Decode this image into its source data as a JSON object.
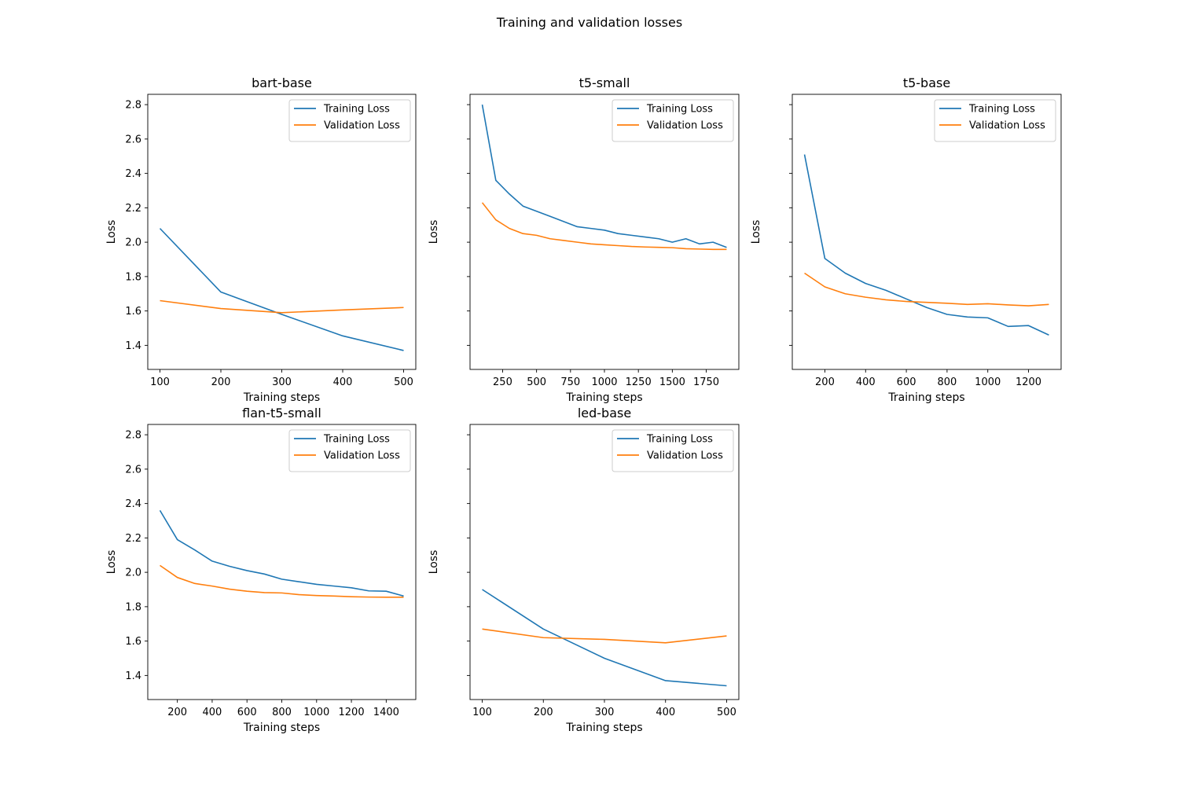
{
  "figure_title": "Training and validation losses",
  "colors": {
    "training": "#1f77b4",
    "validation": "#ff7f0e"
  },
  "chart_data": [
    {
      "type": "line",
      "title": "bart-base",
      "xlabel": "Training steps",
      "ylabel": "Loss",
      "xlim": [
        80,
        520
      ],
      "ylim": [
        1.26,
        2.86
      ],
      "xticks": [
        100,
        200,
        300,
        400,
        500
      ],
      "yticks": [
        1.4,
        1.6,
        1.8,
        2.0,
        2.2,
        2.4,
        2.6,
        2.8
      ],
      "show_ytick_labels": true,
      "legend": "top-right",
      "x": [
        100,
        200,
        300,
        400,
        500
      ],
      "series": [
        {
          "name": "Training Loss",
          "color": "#1f77b4",
          "values": [
            2.08,
            1.71,
            1.58,
            1.455,
            1.37
          ]
        },
        {
          "name": "Validation Loss",
          "color": "#ff7f0e",
          "values": [
            1.66,
            1.614,
            1.59,
            1.606,
            1.62
          ]
        }
      ]
    },
    {
      "type": "line",
      "title": "t5-small",
      "xlabel": "Training steps",
      "ylabel": "Loss",
      "xlim": [
        10,
        1990
      ],
      "ylim": [
        1.26,
        2.86
      ],
      "xticks": [
        250,
        500,
        750,
        1000,
        1250,
        1500,
        1750
      ],
      "yticks": [
        1.4,
        1.6,
        1.8,
        2.0,
        2.2,
        2.4,
        2.6,
        2.8
      ],
      "show_ytick_labels": false,
      "legend": "top-right",
      "x": [
        100,
        200,
        300,
        400,
        500,
        600,
        700,
        800,
        900,
        1000,
        1100,
        1200,
        1300,
        1400,
        1500,
        1600,
        1700,
        1800,
        1900
      ],
      "series": [
        {
          "name": "Training Loss",
          "color": "#1f77b4",
          "values": [
            2.8,
            2.36,
            2.28,
            2.21,
            2.18,
            2.15,
            2.12,
            2.09,
            2.08,
            2.07,
            2.05,
            2.04,
            2.03,
            2.02,
            2.0,
            2.02,
            1.99,
            2.0,
            1.97
          ]
        },
        {
          "name": "Validation Loss",
          "color": "#ff7f0e",
          "values": [
            2.23,
            2.13,
            2.08,
            2.05,
            2.04,
            2.02,
            2.01,
            2.0,
            1.99,
            1.985,
            1.98,
            1.975,
            1.972,
            1.97,
            1.968,
            1.962,
            1.96,
            1.958,
            1.958
          ]
        }
      ]
    },
    {
      "type": "line",
      "title": "t5-base",
      "xlabel": "Training steps",
      "ylabel": "Loss",
      "xlim": [
        40,
        1360
      ],
      "ylim": [
        1.26,
        2.86
      ],
      "xticks": [
        200,
        400,
        600,
        800,
        1000,
        1200
      ],
      "yticks": [
        1.4,
        1.6,
        1.8,
        2.0,
        2.2,
        2.4,
        2.6,
        2.8
      ],
      "show_ytick_labels": false,
      "legend": "top-right",
      "x": [
        100,
        200,
        300,
        400,
        500,
        600,
        700,
        800,
        900,
        1000,
        1100,
        1200,
        1300
      ],
      "series": [
        {
          "name": "Training Loss",
          "color": "#1f77b4",
          "values": [
            2.51,
            1.905,
            1.82,
            1.76,
            1.72,
            1.67,
            1.62,
            1.58,
            1.565,
            1.56,
            1.51,
            1.515,
            1.46
          ]
        },
        {
          "name": "Validation Loss",
          "color": "#ff7f0e",
          "values": [
            1.82,
            1.74,
            1.7,
            1.68,
            1.665,
            1.655,
            1.65,
            1.645,
            1.638,
            1.642,
            1.635,
            1.63,
            1.638
          ]
        }
      ]
    },
    {
      "type": "line",
      "title": "flan-t5-small",
      "xlabel": "Training steps",
      "ylabel": "Loss",
      "xlim": [
        30,
        1570
      ],
      "ylim": [
        1.26,
        2.86
      ],
      "xticks": [
        200,
        400,
        600,
        800,
        1000,
        1200,
        1400
      ],
      "yticks": [
        1.4,
        1.6,
        1.8,
        2.0,
        2.2,
        2.4,
        2.6,
        2.8
      ],
      "show_ytick_labels": true,
      "legend": "top-right",
      "x": [
        100,
        200,
        300,
        400,
        500,
        600,
        700,
        800,
        900,
        1000,
        1100,
        1200,
        1300,
        1400,
        1500
      ],
      "series": [
        {
          "name": "Training Loss",
          "color": "#1f77b4",
          "values": [
            2.36,
            2.19,
            2.13,
            2.065,
            2.035,
            2.01,
            1.99,
            1.96,
            1.945,
            1.93,
            1.92,
            1.91,
            1.892,
            1.89,
            1.862
          ]
        },
        {
          "name": "Validation Loss",
          "color": "#ff7f0e",
          "values": [
            2.04,
            1.97,
            1.935,
            1.92,
            1.902,
            1.89,
            1.882,
            1.88,
            1.87,
            1.865,
            1.862,
            1.858,
            1.856,
            1.855,
            1.855
          ]
        }
      ]
    },
    {
      "type": "line",
      "title": "led-base",
      "xlabel": "Training steps",
      "ylabel": "Loss",
      "xlim": [
        80,
        520
      ],
      "ylim": [
        1.26,
        2.86
      ],
      "xticks": [
        100,
        200,
        300,
        400,
        500
      ],
      "yticks": [
        1.4,
        1.6,
        1.8,
        2.0,
        2.2,
        2.4,
        2.6,
        2.8
      ],
      "show_ytick_labels": false,
      "legend": "top-right",
      "x": [
        100,
        200,
        300,
        400,
        500
      ],
      "series": [
        {
          "name": "Training Loss",
          "color": "#1f77b4",
          "values": [
            1.9,
            1.67,
            1.5,
            1.37,
            1.34
          ]
        },
        {
          "name": "Validation Loss",
          "color": "#ff7f0e",
          "values": [
            1.67,
            1.62,
            1.61,
            1.59,
            1.63
          ]
        }
      ]
    }
  ]
}
